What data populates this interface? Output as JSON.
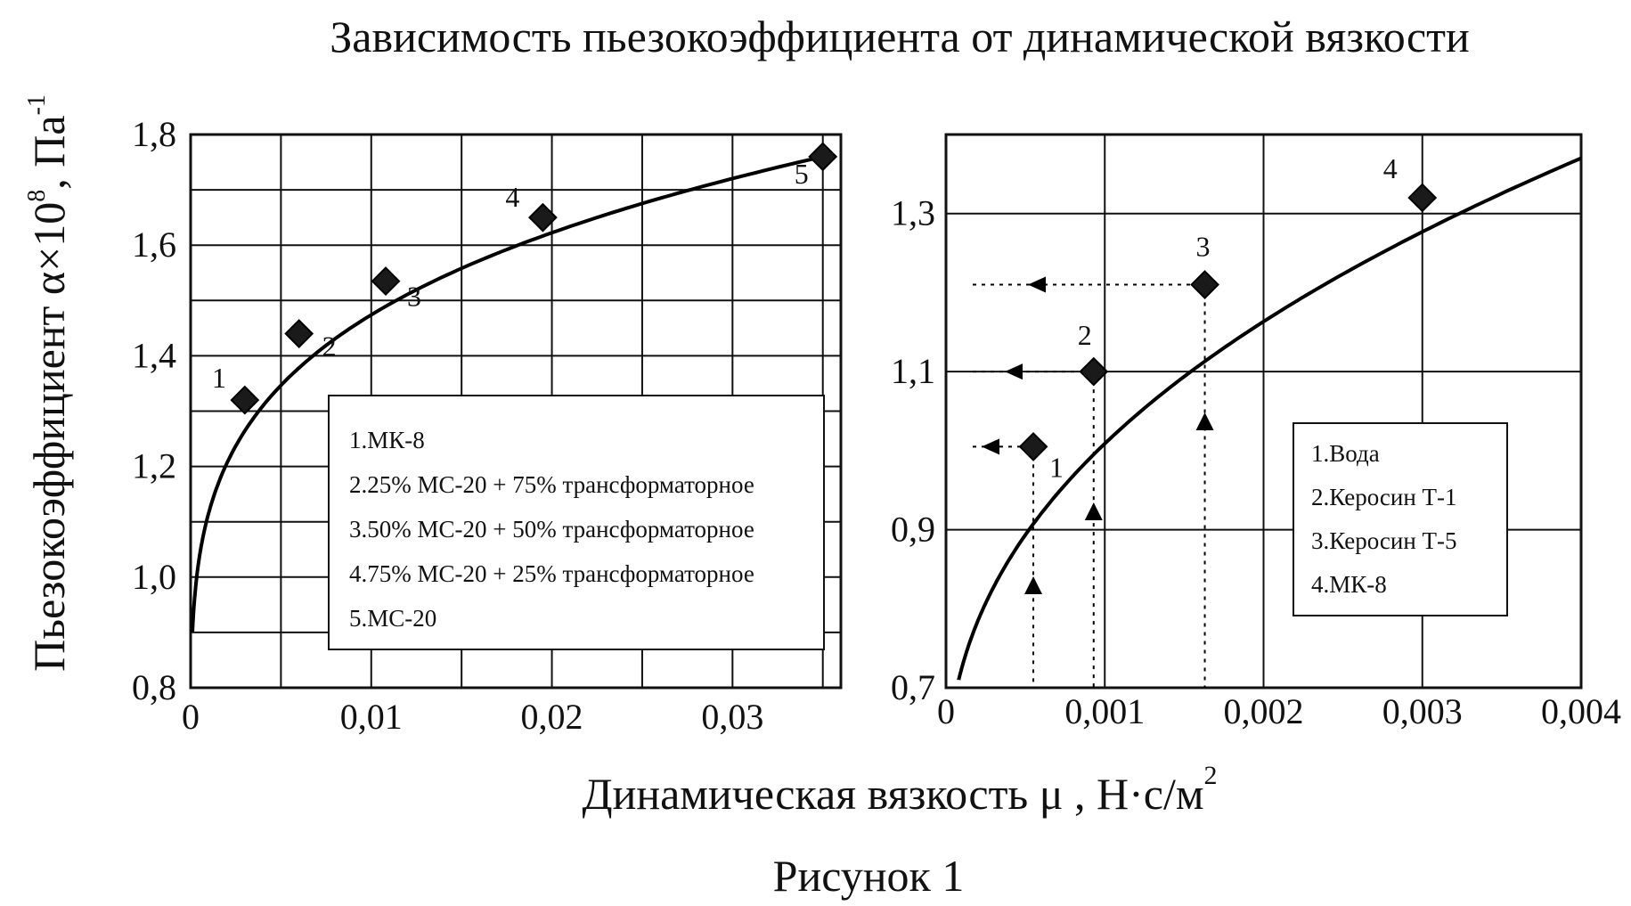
{
  "figure": {
    "title": "Зависимость пьезокоэффициента от динамической вязкости",
    "y_axis_title": "Пьезокоэффициент α×10",
    "y_axis_title_sup": "8",
    "y_axis_title_unit": ", Па",
    "y_axis_title_unit_sup": "-1",
    "x_axis_title": "Динамическая вязкость  μ ,  Н·с/м",
    "x_axis_title_sup": "2",
    "caption": "Рисунок 1"
  },
  "chart_data": [
    {
      "type": "line",
      "xlim": [
        0,
        0.036
      ],
      "ylim": [
        0.8,
        1.8
      ],
      "xticks": [
        0,
        0.01,
        0.02,
        0.03
      ],
      "xtick_labels": [
        "0",
        "0,01",
        "0,02",
        "0,03"
      ],
      "yticks": [
        0.8,
        1.0,
        1.2,
        1.4,
        1.6,
        1.8
      ],
      "ytick_labels": [
        "0,8",
        "1,0",
        "1,2",
        "1,4",
        "1,6",
        "1,8"
      ],
      "grid_x": [
        0,
        0.005,
        0.01,
        0.015,
        0.02,
        0.025,
        0.03,
        0.035
      ],
      "grid_y": [
        0.8,
        0.9,
        1.0,
        1.1,
        1.2,
        1.3,
        1.4,
        1.5,
        1.6,
        1.7,
        1.8
      ],
      "grid": true,
      "legend_position": "center-right",
      "curve": {
        "start": [
          0.0001,
          0.9
        ],
        "end": [
          0.035,
          1.76
        ]
      },
      "points": [
        {
          "label": "1",
          "x": 0.003,
          "y": 1.32
        },
        {
          "label": "2",
          "x": 0.006,
          "y": 1.44
        },
        {
          "label": "3",
          "x": 0.0108,
          "y": 1.535
        },
        {
          "label": "4",
          "x": 0.0195,
          "y": 1.65
        },
        {
          "label": "5",
          "x": 0.035,
          "y": 1.76
        }
      ],
      "legend": [
        "1.МК-8",
        "2.25% МС-20 + 75% трансформаторное",
        "3.50% МС-20 + 50% трансформаторное",
        "4.75% МС-20 + 25% трансформаторное",
        "5.МС-20"
      ]
    },
    {
      "type": "line",
      "xlim": [
        0,
        0.004
      ],
      "ylim": [
        0.7,
        1.4
      ],
      "xticks": [
        0,
        0.001,
        0.002,
        0.003,
        0.004
      ],
      "xtick_labels": [
        "0",
        "0,001",
        "0,002",
        "0,003",
        "0,004"
      ],
      "yticks": [
        0.7,
        0.9,
        1.1,
        1.3
      ],
      "ytick_labels": [
        "0,7",
        "0,9",
        "1,1",
        "1,3"
      ],
      "grid_x": [
        0,
        0.001,
        0.002,
        0.003,
        0.004
      ],
      "grid_y": [
        0.7,
        0.9,
        1.1,
        1.3
      ],
      "grid": true,
      "legend_position": "center-right",
      "curve": {
        "start": [
          8e-05,
          0.71
        ],
        "end": [
          0.004,
          1.37
        ]
      },
      "points": [
        {
          "label": "1",
          "x": 0.00055,
          "y": 1.005
        },
        {
          "label": "2",
          "x": 0.00093,
          "y": 1.1
        },
        {
          "label": "3",
          "x": 0.00163,
          "y": 1.21
        },
        {
          "label": "4",
          "x": 0.003,
          "y": 1.32
        }
      ],
      "legend": [
        "1.Вода",
        "2.Керосин Т-1",
        "3.Керосин Т-5",
        "4.МК-8"
      ]
    }
  ]
}
